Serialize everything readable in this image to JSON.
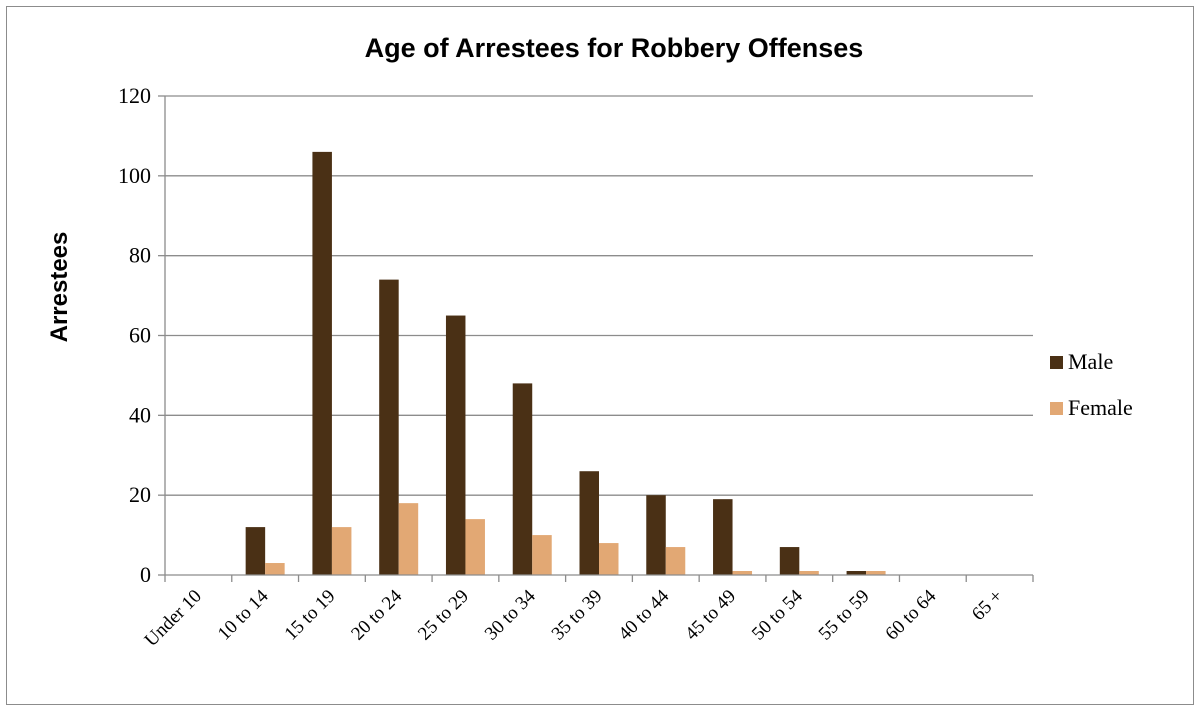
{
  "chart_data": {
    "type": "bar",
    "title": "Age of Arrestees for Robbery Offenses",
    "xlabel": "",
    "ylabel": "Arrestees",
    "ylim": [
      0,
      120
    ],
    "yticks": [
      0,
      20,
      40,
      60,
      80,
      100,
      120
    ],
    "categories": [
      "Under 10",
      "10 to 14",
      "15 to 19",
      "20 to 24",
      "25 to 29",
      "30 to 34",
      "35 to 39",
      "40 to 44",
      "45 to 49",
      "50 to 54",
      "55 to 59",
      "60 to 64",
      "65 +"
    ],
    "series": [
      {
        "name": "Male",
        "color": "#4a3015",
        "values": [
          0,
          12,
          106,
          74,
          65,
          48,
          26,
          20,
          19,
          7,
          1,
          0,
          0
        ]
      },
      {
        "name": "Female",
        "color": "#e2a874",
        "values": [
          0,
          3,
          12,
          18,
          14,
          10,
          8,
          7,
          1,
          1,
          1,
          0,
          0
        ]
      }
    ],
    "grid": true,
    "legend": "right"
  }
}
